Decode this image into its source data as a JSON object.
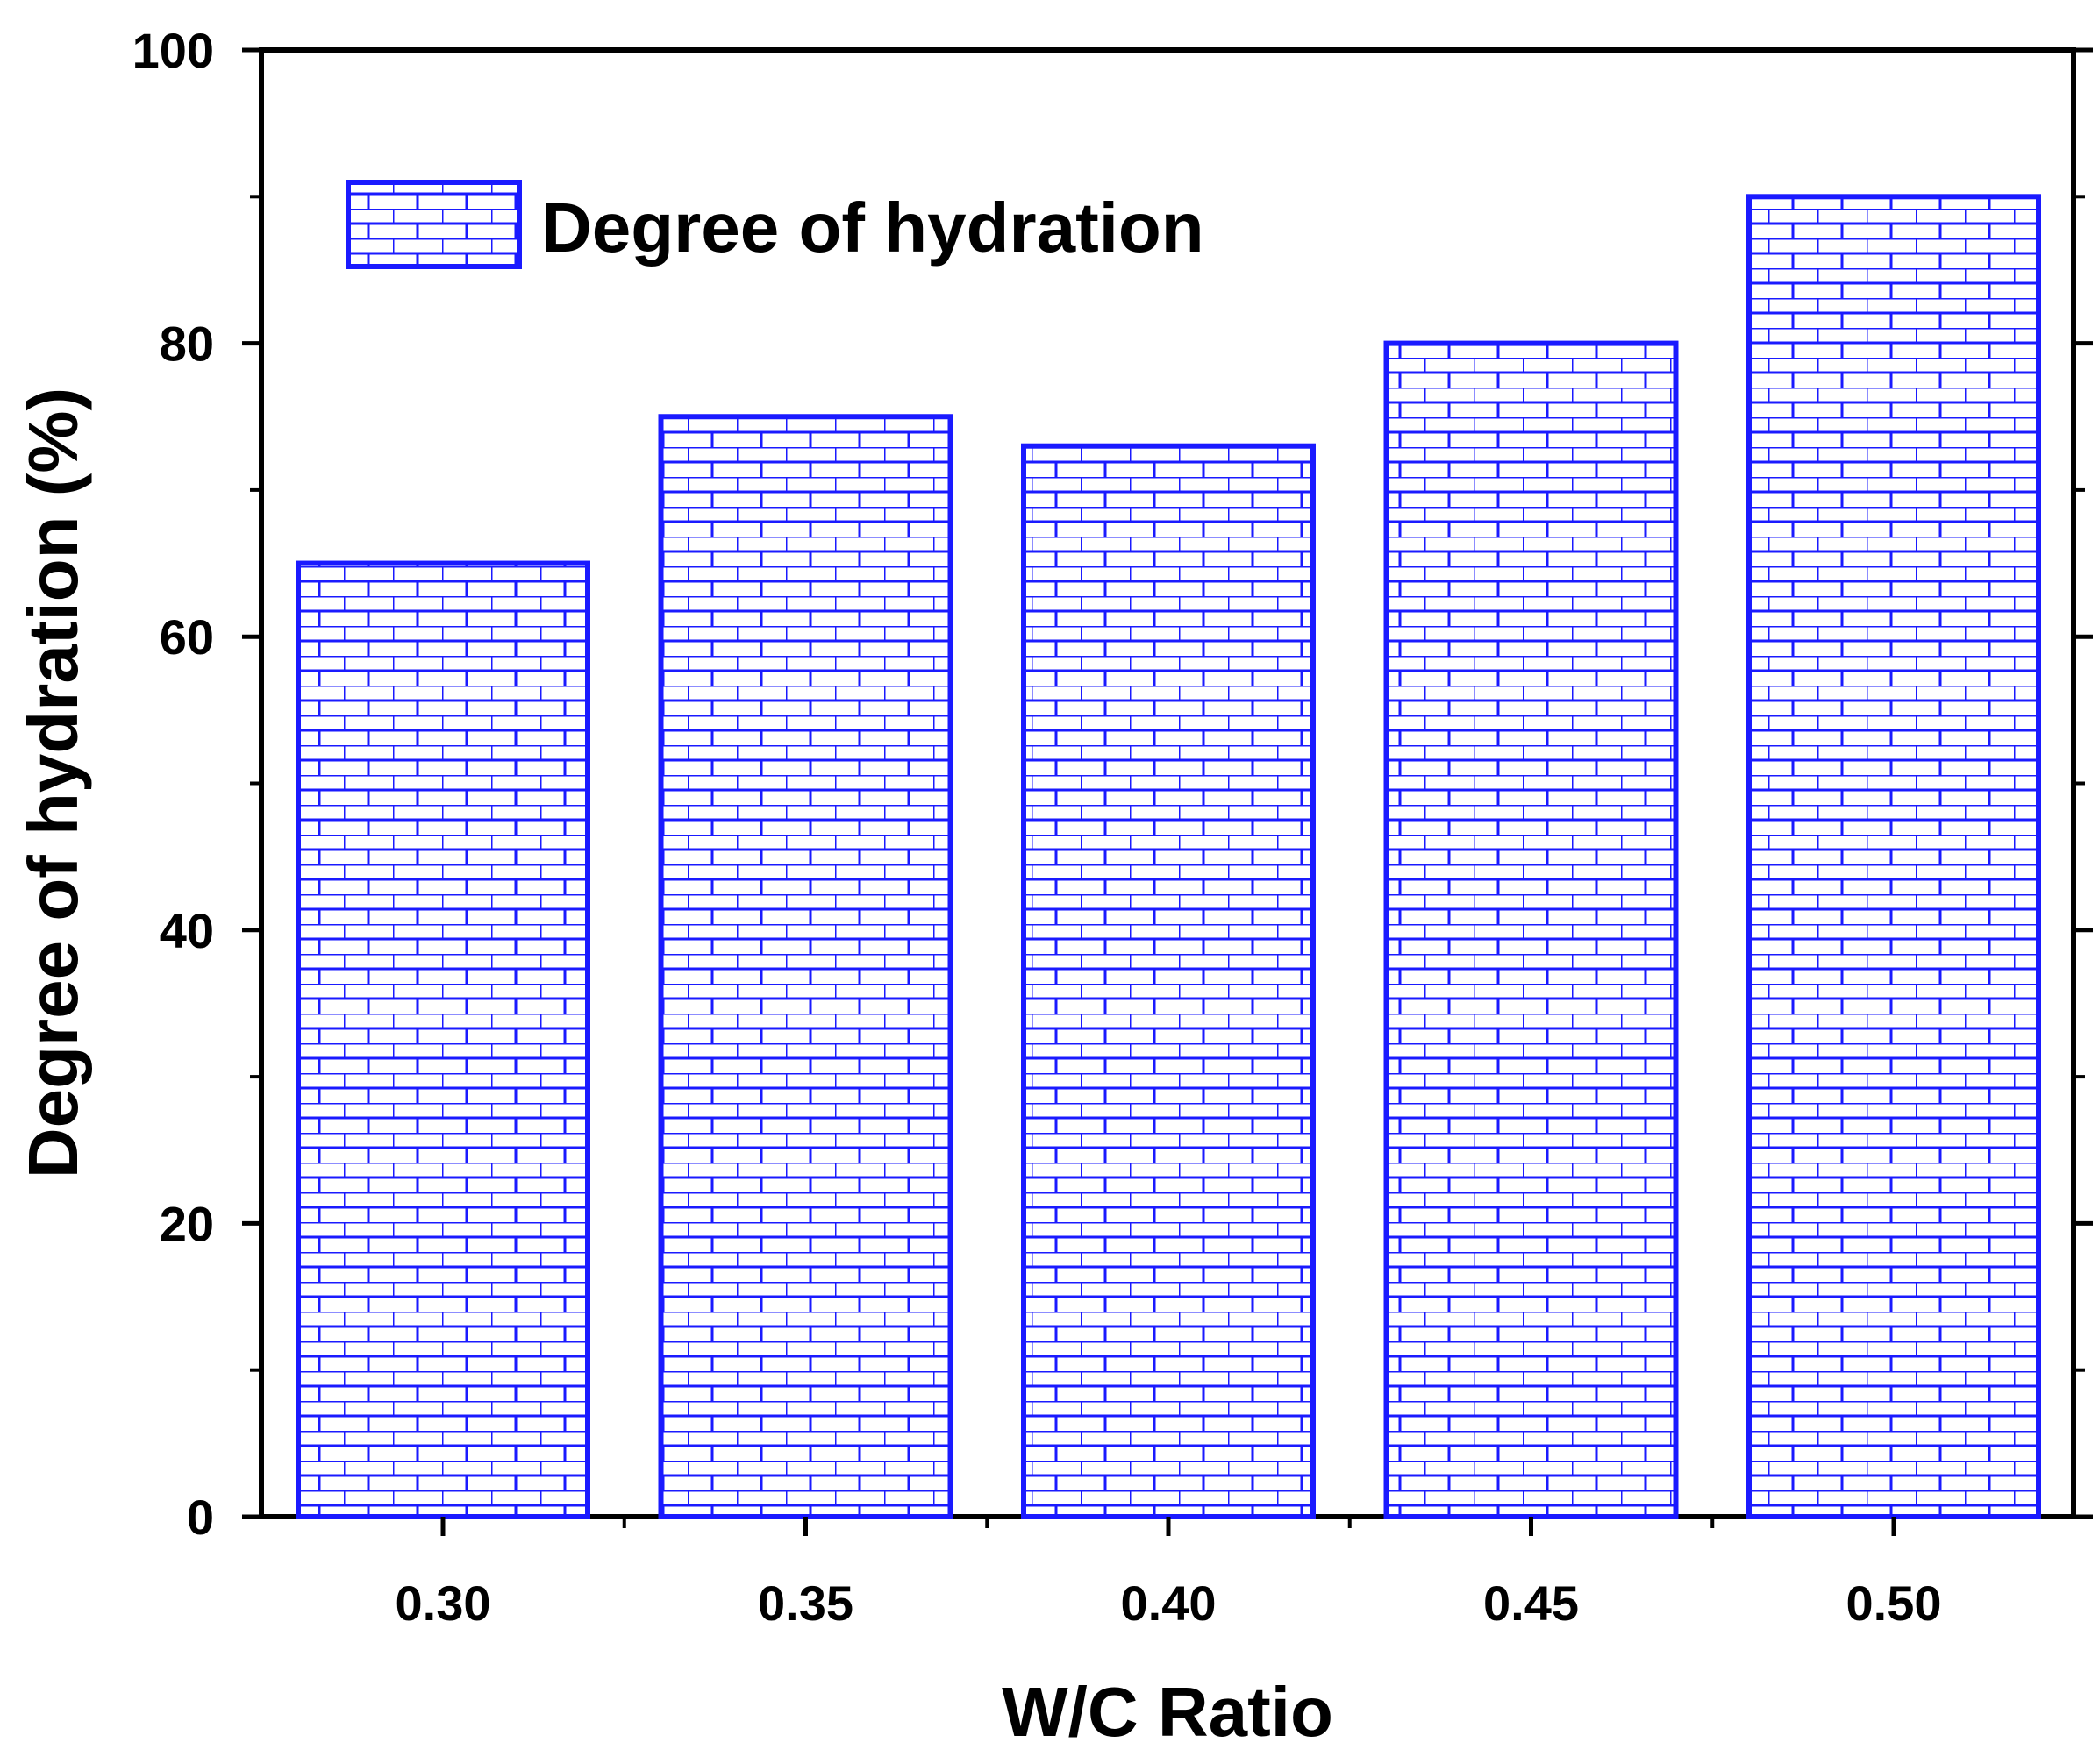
{
  "chart_data": {
    "type": "bar",
    "categories": [
      "0.30",
      "0.35",
      "0.40",
      "0.45",
      "0.50"
    ],
    "values": [
      65,
      75,
      73,
      80,
      90
    ],
    "series_name": "Degree of hydration",
    "xlabel": "W/C Ratio",
    "ylabel": "Degree of hydration (%)",
    "ylim": [
      0,
      100
    ],
    "yticks": [
      "0",
      "20",
      "40",
      "60",
      "80",
      "100"
    ],
    "ytick_values": [
      0,
      20,
      40,
      60,
      80,
      100
    ],
    "yminor_step": 10,
    "legend_position": "top-left",
    "bar_color": "#1a1aff",
    "pattern": "brick"
  }
}
